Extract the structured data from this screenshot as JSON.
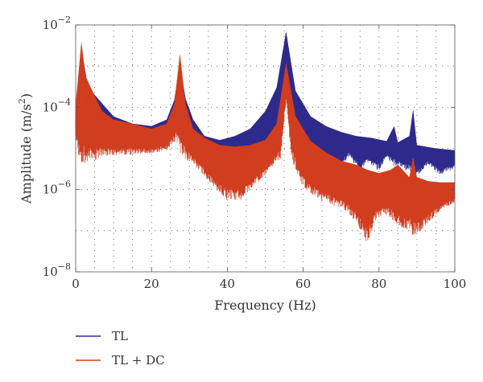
{
  "chart_data": {
    "type": "line",
    "xlabel": "Frequency (Hz)",
    "ylabel_main": "Amplitude (m/s",
    "ylabel_sup": "2",
    "ylabel_end": ")",
    "xlim": [
      0,
      100
    ],
    "ylim": [
      1e-08,
      0.01
    ],
    "yscale": "log",
    "grid": "dotted",
    "x_ticks": [
      {
        "value": 0,
        "label": "0"
      },
      {
        "value": 20,
        "label": "20"
      },
      {
        "value": 40,
        "label": "40"
      },
      {
        "value": 60,
        "label": "60"
      },
      {
        "value": 80,
        "label": "80"
      },
      {
        "value": 100,
        "label": "100"
      }
    ],
    "y_ticks": [
      {
        "value": 1e-08,
        "base": "10",
        "exp": "−8"
      },
      {
        "value": 1e-06,
        "base": "10",
        "exp": "−6"
      },
      {
        "value": 0.0001,
        "base": "10",
        "exp": "−4"
      },
      {
        "value": 0.01,
        "base": "10",
        "exp": "−2"
      }
    ],
    "legend_placement": "bottom-left",
    "series": [
      {
        "name": "TL",
        "color": "#2e2a8c",
        "upper": [
          [
            0,
            0.0001
          ],
          [
            1.5,
            0.003
          ],
          [
            3,
            0.0004
          ],
          [
            5,
            0.0002
          ],
          [
            10,
            6e-05
          ],
          [
            15,
            4e-05
          ],
          [
            20,
            3.5e-05
          ],
          [
            24,
            5e-05
          ],
          [
            26,
            0.00015
          ],
          [
            27.5,
            0.0012
          ],
          [
            29,
            0.00016
          ],
          [
            31,
            5e-05
          ],
          [
            34,
            2e-05
          ],
          [
            38,
            1.6e-05
          ],
          [
            42,
            2e-05
          ],
          [
            46,
            3e-05
          ],
          [
            50,
            8e-05
          ],
          [
            53,
            0.0003
          ],
          [
            55.5,
            0.007
          ],
          [
            58,
            0.00025
          ],
          [
            62,
            6e-05
          ],
          [
            66,
            3.5e-05
          ],
          [
            70,
            2.5e-05
          ],
          [
            74,
            2e-05
          ],
          [
            78,
            1.8e-05
          ],
          [
            82,
            1.5e-05
          ],
          [
            84,
            3.5e-05
          ],
          [
            85,
            1.4e-05
          ],
          [
            88,
            2e-05
          ],
          [
            89,
            9e-05
          ],
          [
            90,
            1.2e-05
          ],
          [
            95,
            1e-05
          ],
          [
            100,
            9e-06
          ]
        ],
        "lower": [
          [
            0,
            3e-05
          ],
          [
            3,
            2e-05
          ],
          [
            8,
            1.5e-05
          ],
          [
            15,
            1.2e-05
          ],
          [
            20,
            1.2e-05
          ],
          [
            24,
            1.5e-05
          ],
          [
            27,
            4e-05
          ],
          [
            29,
            2e-05
          ],
          [
            32,
            8e-06
          ],
          [
            36,
            4e-06
          ],
          [
            40,
            2e-06
          ],
          [
            43,
            4e-06
          ],
          [
            46,
            6e-06
          ],
          [
            50,
            1.2e-05
          ],
          [
            54,
            4e-05
          ],
          [
            55.5,
            0.0005
          ],
          [
            57,
            6e-05
          ],
          [
            60,
            1.5e-05
          ],
          [
            64,
            9e-06
          ],
          [
            68,
            6e-06
          ],
          [
            70,
            5e-06
          ],
          [
            72,
            8e-06
          ],
          [
            75,
            4e-06
          ],
          [
            77,
            6e-06
          ],
          [
            80,
            4e-06
          ],
          [
            82,
            7e-06
          ],
          [
            85,
            5e-06
          ],
          [
            88,
            4e-06
          ],
          [
            90,
            3e-06
          ],
          [
            93,
            5e-06
          ],
          [
            96,
            3e-06
          ],
          [
            100,
            4e-06
          ]
        ]
      },
      {
        "name": "TL + DC",
        "color": "#d13d1f",
        "upper": [
          [
            0,
            0.00012
          ],
          [
            1.5,
            0.004
          ],
          [
            2.5,
            0.0006
          ],
          [
            4,
            0.0003
          ],
          [
            7,
            8e-05
          ],
          [
            10,
            5e-05
          ],
          [
            15,
            4e-05
          ],
          [
            20,
            3e-05
          ],
          [
            24,
            4e-05
          ],
          [
            26,
            0.00012
          ],
          [
            27.5,
            0.002
          ],
          [
            29,
            0.00012
          ],
          [
            31,
            3e-05
          ],
          [
            34,
            1.8e-05
          ],
          [
            38,
            1.2e-05
          ],
          [
            42,
            1.1e-05
          ],
          [
            46,
            1.2e-05
          ],
          [
            50,
            1.6e-05
          ],
          [
            53,
            4e-05
          ],
          [
            55.5,
            0.0012
          ],
          [
            58,
            6e-05
          ],
          [
            62,
            1.5e-05
          ],
          [
            66,
            8e-06
          ],
          [
            70,
            5e-06
          ],
          [
            74,
            4e-06
          ],
          [
            77,
            3e-06
          ],
          [
            80,
            2.5e-06
          ],
          [
            83,
            3e-06
          ],
          [
            85,
            4e-06
          ],
          [
            88,
            2e-06
          ],
          [
            89,
            6e-06
          ],
          [
            90,
            2e-06
          ],
          [
            93,
            1.6e-06
          ],
          [
            96,
            1.5e-06
          ],
          [
            100,
            1.5e-06
          ]
        ],
        "lower": [
          [
            0,
            2e-05
          ],
          [
            3,
            1e-05
          ],
          [
            8,
            1e-05
          ],
          [
            15,
            1e-05
          ],
          [
            20,
            1e-05
          ],
          [
            24,
            1.2e-05
          ],
          [
            27,
            3e-05
          ],
          [
            29,
            1e-05
          ],
          [
            32,
            5e-06
          ],
          [
            36,
            2e-06
          ],
          [
            40,
            1e-06
          ],
          [
            44,
            1e-06
          ],
          [
            47,
            2e-06
          ],
          [
            50,
            3e-06
          ],
          [
            54,
            1e-05
          ],
          [
            55.5,
            0.0002
          ],
          [
            57,
            1e-05
          ],
          [
            60,
            2e-06
          ],
          [
            64,
            1e-06
          ],
          [
            68,
            7e-07
          ],
          [
            71,
            5e-07
          ],
          [
            74,
            3e-07
          ],
          [
            77,
            1e-07
          ],
          [
            79,
            3e-07
          ],
          [
            82,
            4e-07
          ],
          [
            84,
            3e-07
          ],
          [
            86,
            2e-07
          ],
          [
            88,
            2e-07
          ],
          [
            90,
            1.5e-07
          ],
          [
            93,
            2.5e-07
          ],
          [
            96,
            4e-07
          ],
          [
            100,
            6e-07
          ]
        ]
      }
    ]
  }
}
